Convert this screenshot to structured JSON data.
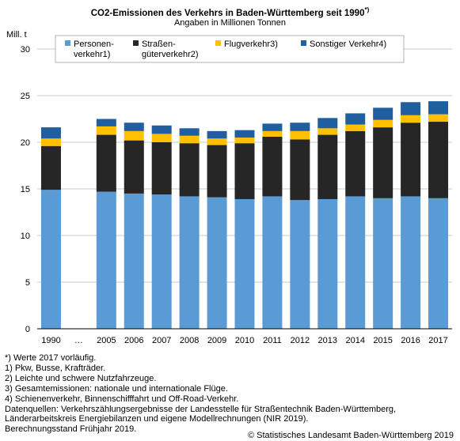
{
  "chart_data": {
    "type": "bar",
    "stacked": true,
    "title": "CO2-Emissionen des Verkehrs in Baden-Württemberg seit 1990",
    "title_superscript": "*)",
    "subtitle": "Angaben in Millionen Tonnen",
    "ylabel": "Mill. t",
    "ylim": [
      0,
      30
    ],
    "yticks": [
      0,
      5,
      10,
      15,
      20,
      25,
      30
    ],
    "grid": true,
    "legend_position": "top",
    "categories": [
      "1990",
      "…",
      "2005",
      "2006",
      "2007",
      "2008",
      "2009",
      "2010",
      "2011",
      "2012",
      "2013",
      "2014",
      "2015",
      "2016",
      "2017"
    ],
    "series": [
      {
        "name_lines": [
          "Personen-",
          "verkehr1)"
        ],
        "color": "#5b9bd5",
        "values": [
          14.9,
          null,
          14.7,
          14.5,
          14.4,
          14.2,
          14.1,
          13.9,
          14.2,
          13.8,
          13.9,
          14.2,
          14.0,
          14.2,
          14.0
        ]
      },
      {
        "name_lines": [
          "Straßen-",
          "güterverkehr2)"
        ],
        "color": "#262626",
        "values": [
          4.7,
          null,
          6.1,
          5.7,
          5.6,
          5.7,
          5.6,
          6.0,
          6.4,
          6.5,
          6.9,
          7.0,
          7.6,
          7.9,
          8.2
        ]
      },
      {
        "name_lines": [
          "Flugverkehr3)"
        ],
        "color": "#ffc000",
        "values": [
          0.8,
          null,
          0.9,
          1.0,
          0.9,
          0.8,
          0.7,
          0.6,
          0.6,
          0.9,
          0.7,
          0.7,
          0.8,
          0.8,
          0.8
        ]
      },
      {
        "name_lines": [
          "Sonstiger Verkehr4)"
        ],
        "color": "#1f5f9f",
        "values": [
          1.2,
          null,
          0.8,
          0.9,
          0.9,
          0.8,
          0.8,
          0.8,
          0.8,
          0.9,
          1.1,
          1.2,
          1.3,
          1.4,
          1.4
        ]
      }
    ]
  },
  "footnotes": [
    "*) Werte 2017 vorläufig.",
    "1) Pkw, Busse, Krafträder.",
    "2) Leichte und schwere Nutzfahrzeuge.",
    "3) Gesamtemissionen: nationale und internationale Flüge.",
    "4) Schienenverkehr, Binnenschifffahrt und Off-Road-Verkehr.",
    "Datenquellen: Verkehrszählungsergebnisse der Landesstelle für Straßentechnik Baden-Württemberg,",
    "Länderarbeitskreis Energiebilanzen und eigene Modellrechnungen (NIR 2019).",
    "Berechnungsstand Frühjahr 2019."
  ],
  "copyright": "© Statistisches Landesamt Baden-Württemberg 2019"
}
